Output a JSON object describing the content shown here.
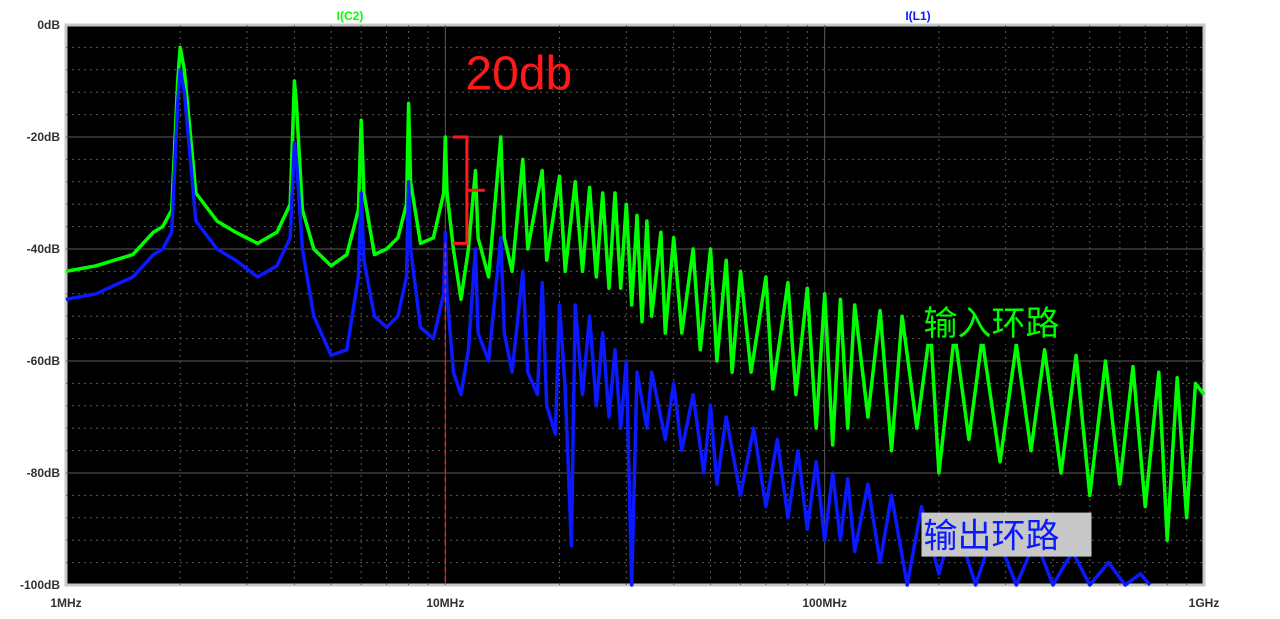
{
  "chart_data": {
    "type": "line",
    "title": "",
    "xlabel": "",
    "ylabel": "",
    "x_scale": "log",
    "xlim": [
      1,
      1000
    ],
    "ylim": [
      -100,
      0
    ],
    "grid": true,
    "x_tick_labels": [
      {
        "value": 1,
        "label": "1MHz"
      },
      {
        "value": 10,
        "label": "10MHz"
      },
      {
        "value": 100,
        "label": "100MHz"
      },
      {
        "value": 1000,
        "label": "1GHz"
      }
    ],
    "y_tick_labels": [
      {
        "value": 0,
        "label": "0dB"
      },
      {
        "value": -20,
        "label": "-20dB"
      },
      {
        "value": -40,
        "label": "-40dB"
      },
      {
        "value": -60,
        "label": "-60dB"
      },
      {
        "value": -80,
        "label": "-80dB"
      },
      {
        "value": -100,
        "label": "-100dB"
      }
    ],
    "series": [
      {
        "name": "I(C2)",
        "color": "#00ff00",
        "points": [
          [
            1,
            -44
          ],
          [
            1.2,
            -43
          ],
          [
            1.5,
            -41
          ],
          [
            1.7,
            -37
          ],
          [
            1.8,
            -36
          ],
          [
            1.9,
            -33
          ],
          [
            1.97,
            -10
          ],
          [
            2.0,
            -4
          ],
          [
            2.05,
            -8
          ],
          [
            2.2,
            -30
          ],
          [
            2.5,
            -35
          ],
          [
            2.8,
            -37
          ],
          [
            3.2,
            -39
          ],
          [
            3.6,
            -37
          ],
          [
            3.9,
            -32
          ],
          [
            4.0,
            -10
          ],
          [
            4.05,
            -14
          ],
          [
            4.2,
            -33
          ],
          [
            4.5,
            -40
          ],
          [
            5.0,
            -43
          ],
          [
            5.5,
            -41
          ],
          [
            5.9,
            -33
          ],
          [
            6.0,
            -17
          ],
          [
            6.1,
            -30
          ],
          [
            6.5,
            -41
          ],
          [
            7.0,
            -40
          ],
          [
            7.5,
            -38
          ],
          [
            7.9,
            -32
          ],
          [
            8.0,
            -14
          ],
          [
            8.1,
            -28
          ],
          [
            8.6,
            -39
          ],
          [
            9.3,
            -38
          ],
          [
            9.9,
            -30
          ],
          [
            10.0,
            -20
          ],
          [
            10.1,
            -30
          ],
          [
            10.5,
            -40
          ],
          [
            11.0,
            -49
          ],
          [
            11.5,
            -40
          ],
          [
            12.0,
            -26
          ],
          [
            12.2,
            -38
          ],
          [
            13.0,
            -45
          ],
          [
            14.0,
            -20
          ],
          [
            14.3,
            -38
          ],
          [
            15.0,
            -44
          ],
          [
            16.0,
            -24
          ],
          [
            16.5,
            -40
          ],
          [
            18.0,
            -26
          ],
          [
            18.5,
            -42
          ],
          [
            20.0,
            -27
          ],
          [
            20.7,
            -44
          ],
          [
            22.0,
            -28
          ],
          [
            23.0,
            -44
          ],
          [
            24.0,
            -29
          ],
          [
            25.0,
            -45
          ],
          [
            26.0,
            -30
          ],
          [
            27.0,
            -47
          ],
          [
            28.0,
            -30
          ],
          [
            29.0,
            -47
          ],
          [
            30.0,
            -32
          ],
          [
            31.0,
            -50
          ],
          [
            32.0,
            -34
          ],
          [
            33.0,
            -53
          ],
          [
            34.0,
            -35
          ],
          [
            35.0,
            -52
          ],
          [
            37.0,
            -37
          ],
          [
            38.0,
            -55
          ],
          [
            40.0,
            -38
          ],
          [
            42.0,
            -55
          ],
          [
            45.0,
            -40
          ],
          [
            47.0,
            -58
          ],
          [
            50.0,
            -40
          ],
          [
            52.0,
            -60
          ],
          [
            55.0,
            -42
          ],
          [
            57.0,
            -62
          ],
          [
            60.0,
            -44
          ],
          [
            64.0,
            -62
          ],
          [
            70.0,
            -45
          ],
          [
            73.0,
            -65
          ],
          [
            80.0,
            -46
          ],
          [
            84.0,
            -66
          ],
          [
            90.0,
            -47
          ],
          [
            95.0,
            -72
          ],
          [
            100.0,
            -48
          ],
          [
            105.0,
            -75
          ],
          [
            110.0,
            -49
          ],
          [
            115.0,
            -72
          ],
          [
            120.0,
            -50
          ],
          [
            130.0,
            -70
          ],
          [
            140.0,
            -51
          ],
          [
            150.0,
            -76
          ],
          [
            160.0,
            -52
          ],
          [
            175.0,
            -72
          ],
          [
            190.0,
            -54
          ],
          [
            200.0,
            -80
          ],
          [
            220.0,
            -55
          ],
          [
            240.0,
            -74
          ],
          [
            260.0,
            -56
          ],
          [
            290.0,
            -78
          ],
          [
            320.0,
            -57
          ],
          [
            350.0,
            -76
          ],
          [
            380.0,
            -58
          ],
          [
            420.0,
            -80
          ],
          [
            460.0,
            -59
          ],
          [
            500.0,
            -84
          ],
          [
            550.0,
            -60
          ],
          [
            600.0,
            -82
          ],
          [
            650.0,
            -61
          ],
          [
            700.0,
            -86
          ],
          [
            760.0,
            -62
          ],
          [
            800.0,
            -92
          ],
          [
            850.0,
            -63
          ],
          [
            900.0,
            -88
          ],
          [
            950.0,
            -64
          ],
          [
            1000.0,
            -66
          ]
        ]
      },
      {
        "name": "I(L1)",
        "color": "#0a19ff",
        "points": [
          [
            1,
            -49
          ],
          [
            1.2,
            -48
          ],
          [
            1.5,
            -45
          ],
          [
            1.7,
            -41
          ],
          [
            1.8,
            -40
          ],
          [
            1.9,
            -37
          ],
          [
            1.97,
            -14
          ],
          [
            2.0,
            -8
          ],
          [
            2.05,
            -12
          ],
          [
            2.2,
            -35
          ],
          [
            2.5,
            -40
          ],
          [
            2.8,
            -42
          ],
          [
            3.2,
            -45
          ],
          [
            3.6,
            -43
          ],
          [
            3.9,
            -38
          ],
          [
            4.0,
            -21
          ],
          [
            4.05,
            -24
          ],
          [
            4.2,
            -40
          ],
          [
            4.5,
            -52
          ],
          [
            5.0,
            -59
          ],
          [
            5.5,
            -58
          ],
          [
            5.9,
            -45
          ],
          [
            6.0,
            -30
          ],
          [
            6.1,
            -42
          ],
          [
            6.5,
            -52
          ],
          [
            7.0,
            -54
          ],
          [
            7.5,
            -52
          ],
          [
            7.9,
            -45
          ],
          [
            8.0,
            -28
          ],
          [
            8.1,
            -40
          ],
          [
            8.6,
            -54
          ],
          [
            9.3,
            -56
          ],
          [
            9.9,
            -48
          ],
          [
            10.0,
            -37
          ],
          [
            10.1,
            -48
          ],
          [
            10.5,
            -62
          ],
          [
            11.0,
            -66
          ],
          [
            11.5,
            -58
          ],
          [
            12.0,
            -40
          ],
          [
            12.2,
            -55
          ],
          [
            13.0,
            -60
          ],
          [
            14.0,
            -38
          ],
          [
            14.3,
            -55
          ],
          [
            15.0,
            -62
          ],
          [
            16.0,
            -44
          ],
          [
            16.5,
            -62
          ],
          [
            17.5,
            -66
          ],
          [
            18.0,
            -46
          ],
          [
            18.5,
            -68
          ],
          [
            19.5,
            -73
          ],
          [
            20.0,
            -50
          ],
          [
            20.7,
            -65
          ],
          [
            21.5,
            -93
          ],
          [
            22.0,
            -50
          ],
          [
            23.0,
            -66
          ],
          [
            24.0,
            -52
          ],
          [
            25.0,
            -68
          ],
          [
            26.0,
            -55
          ],
          [
            27.0,
            -70
          ],
          [
            28.0,
            -58
          ],
          [
            29.0,
            -72
          ],
          [
            30.0,
            -60
          ],
          [
            31.0,
            -100
          ],
          [
            32.0,
            -62
          ],
          [
            34.0,
            -72
          ],
          [
            35.0,
            -62
          ],
          [
            38.0,
            -74
          ],
          [
            40.0,
            -64
          ],
          [
            42.0,
            -76
          ],
          [
            45.0,
            -66
          ],
          [
            48.0,
            -80
          ],
          [
            50.0,
            -68
          ],
          [
            52.0,
            -82
          ],
          [
            55.0,
            -70
          ],
          [
            60.0,
            -84
          ],
          [
            65.0,
            -72
          ],
          [
            70.0,
            -86
          ],
          [
            75.0,
            -74
          ],
          [
            80.0,
            -88
          ],
          [
            85.0,
            -76
          ],
          [
            90.0,
            -90
          ],
          [
            95.0,
            -78
          ],
          [
            100.0,
            -92
          ],
          [
            105.0,
            -80
          ],
          [
            110.0,
            -92
          ],
          [
            115.0,
            -81
          ],
          [
            120.0,
            -94
          ],
          [
            130.0,
            -82
          ],
          [
            140.0,
            -96
          ],
          [
            150.0,
            -84
          ],
          [
            165.0,
            -100
          ],
          [
            180.0,
            -86
          ],
          [
            200.0,
            -98
          ],
          [
            220.0,
            -88
          ],
          [
            250.0,
            -100
          ],
          [
            280.0,
            -90
          ],
          [
            320.0,
            -100
          ],
          [
            360.0,
            -92
          ],
          [
            400.0,
            -100
          ],
          [
            450.0,
            -94
          ],
          [
            500.0,
            -100
          ],
          [
            560.0,
            -96
          ],
          [
            620.0,
            -100
          ],
          [
            680.0,
            -98
          ],
          [
            720.0,
            -100
          ]
        ]
      }
    ],
    "annotations": {
      "delta_label": "20db",
      "delta_color": "#ff1a1a",
      "delta_range": [
        -20,
        -39
      ],
      "marker_x": 10,
      "marker_color": "#ff1a1a",
      "callout_in": {
        "text": "输入环路",
        "x": 180,
        "y": -53,
        "color": "#00ff00",
        "bg": "#000000"
      },
      "callout_out": {
        "text": "输出环路",
        "x": 180,
        "y": -91,
        "color": "#0a19ff",
        "bg": "#c8c8c8"
      }
    },
    "colors": {
      "plot_bg": "#000000",
      "frame": "#c8c8c8",
      "grid": "#5a5a5a"
    }
  }
}
